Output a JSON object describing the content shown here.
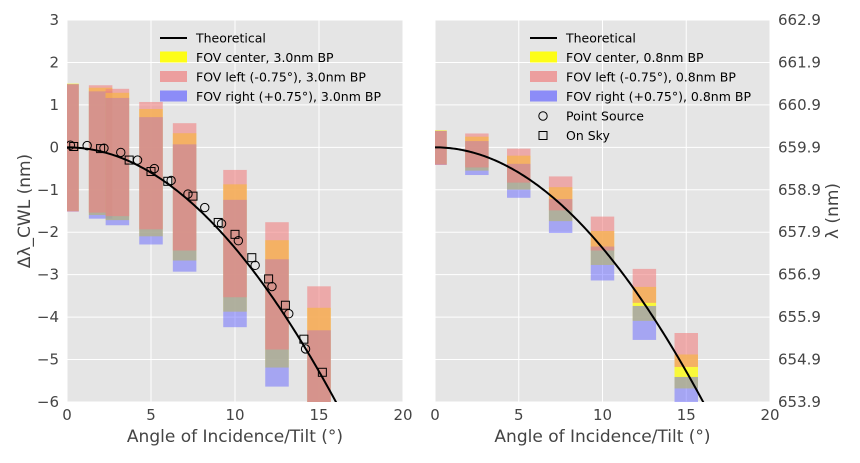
{
  "chart_data": [
    {
      "type": "bar",
      "panel": "left",
      "xlabel": "Angle of Incidence/Tilt (°)",
      "ylabel": "Δλ_CWL (nm)",
      "xlim": [
        0,
        20
      ],
      "ylim": [
        -6,
        3
      ],
      "xticks": [
        "0",
        "5",
        "10",
        "15",
        "20"
      ],
      "yticks": [
        "3",
        "2",
        "1",
        "0",
        "−1",
        "−2",
        "−3",
        "−4",
        "−5",
        "−6"
      ],
      "grid": true,
      "theoretical_curve": {
        "name": "Theoretical",
        "n_eff": 2.05,
        "x_max": 17
      },
      "bandpass_nm": 3.0,
      "angles": [
        0,
        2,
        3,
        5,
        7,
        10,
        12.5,
        15
      ],
      "series": [
        {
          "name": "FOV center, 3.0nm BP",
          "color": "#ffff00",
          "offset_deg": 0,
          "alpha": 0.75
        },
        {
          "name": "FOV left (-0.75°), 3.0nm BP",
          "color": "#f08080",
          "offset_deg": -0.75,
          "alpha": 0.6
        },
        {
          "name": "FOV right (+0.75°), 3.0nm BP",
          "color": "#6666ff",
          "offset_deg": 0.75,
          "alpha": 0.5
        }
      ],
      "point_source": {
        "name": "Point Source",
        "x": [
          0.2,
          1.2,
          2.2,
          3.2,
          4.2,
          5.2,
          6.2,
          7.2,
          8.2,
          9.2,
          10.2,
          11.2,
          12.2,
          13.2,
          14.2
        ],
        "y": [
          0.05,
          0.04,
          -0.02,
          -0.12,
          -0.3,
          -0.5,
          -0.78,
          -1.1,
          -1.42,
          -1.8,
          -2.2,
          -2.78,
          -3.28,
          -3.92,
          -4.75
        ]
      },
      "on_sky": {
        "name": "On Sky",
        "x": [
          0.4,
          2.0,
          3.7,
          5.0,
          6.0,
          7.5,
          9.0,
          10.0,
          11.0,
          12.0,
          13.0,
          14.1,
          15.2
        ],
        "y": [
          0.02,
          -0.03,
          -0.3,
          -0.57,
          -0.8,
          -1.15,
          -1.77,
          -2.05,
          -2.6,
          -3.1,
          -3.72,
          -4.52,
          -5.3
        ]
      }
    },
    {
      "type": "bar",
      "panel": "right",
      "xlabel": "Angle of Incidence/Tilt (°)",
      "ylabel": "λ (nm)",
      "xlim": [
        0,
        20
      ],
      "ylim": [
        653.9,
        662.9
      ],
      "xticks": [
        "0",
        "5",
        "10",
        "15",
        "20"
      ],
      "yticks": [
        "662.9",
        "661.9",
        "660.9",
        "659.9",
        "658.9",
        "657.9",
        "656.9",
        "655.9",
        "654.9",
        "653.9"
      ],
      "grid": true,
      "theoretical_curve": {
        "name": "Theoretical",
        "n_eff": 2.05,
        "x_max": 17
      },
      "bandpass_nm": 0.8,
      "angles": [
        0,
        2.5,
        5,
        7.5,
        10,
        12.5,
        15
      ],
      "series": [
        {
          "name": "FOV center, 0.8nm BP",
          "color": "#ffff00",
          "offset_deg": 0,
          "alpha": 0.75
        },
        {
          "name": "FOV left (-0.75°), 0.8nm BP",
          "color": "#f08080",
          "offset_deg": -0.75,
          "alpha": 0.6
        },
        {
          "name": "FOV right (+0.75°), 0.8nm BP",
          "color": "#6666ff",
          "offset_deg": 0.75,
          "alpha": 0.5
        }
      ],
      "point_source": {
        "name": "Point Source"
      },
      "on_sky": {
        "name": "On Sky"
      }
    }
  ]
}
